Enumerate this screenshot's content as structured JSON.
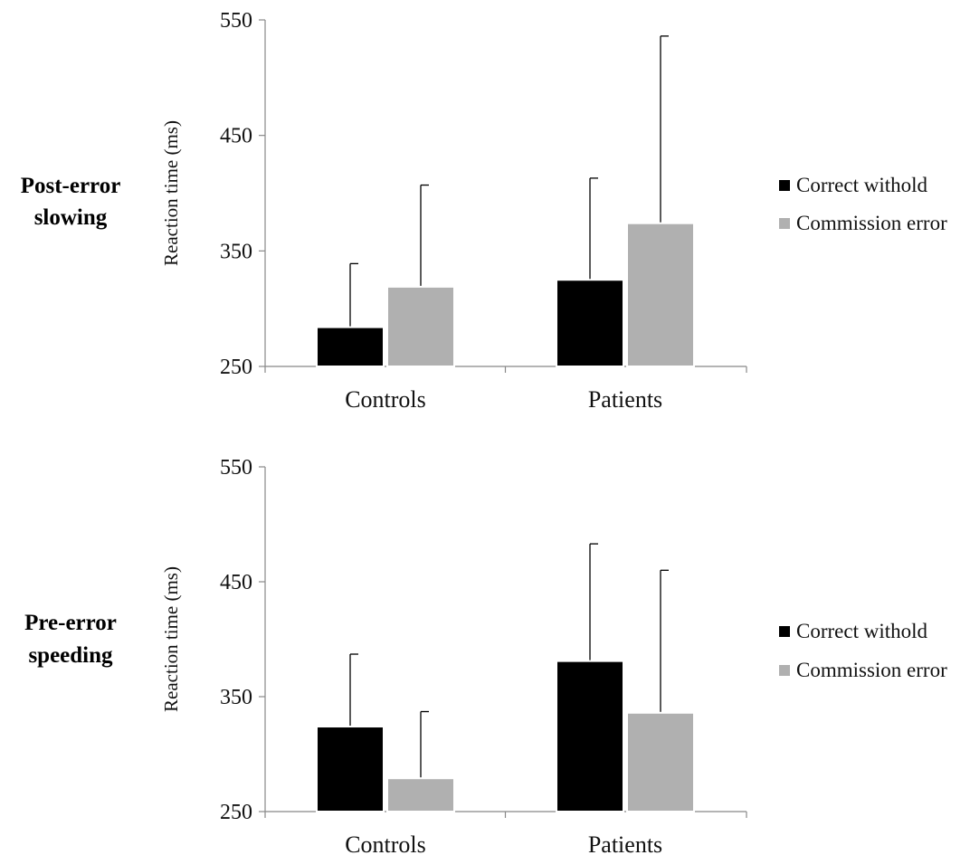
{
  "chart_data": [
    {
      "type": "bar",
      "side_label": [
        "Post-error",
        "slowing"
      ],
      "title": "",
      "xlabel": "",
      "ylabel": "Reaction time (ms)",
      "ylim": [
        250,
        550
      ],
      "yticks": [
        250,
        350,
        450,
        550
      ],
      "categories": [
        "Controls",
        "Patients"
      ],
      "series": [
        {
          "name": "Correct withold",
          "color": "#000000",
          "values": [
            284,
            325
          ],
          "error": [
            55,
            88
          ]
        },
        {
          "name": "Commission error",
          "color": "#b0b0b0",
          "values": [
            319,
            374
          ],
          "error": [
            88,
            162
          ]
        }
      ],
      "legend": {
        "position": "right",
        "entries": [
          "Correct withold",
          "Commission error"
        ]
      }
    },
    {
      "type": "bar",
      "side_label": [
        "Pre-error",
        "speeding"
      ],
      "title": "",
      "xlabel": "",
      "ylabel": "Reaction time (ms)",
      "ylim": [
        250,
        550
      ],
      "yticks": [
        250,
        350,
        450,
        550
      ],
      "categories": [
        "Controls",
        "Patients"
      ],
      "series": [
        {
          "name": "Correct withold",
          "color": "#000000",
          "values": [
            324,
            381
          ],
          "error": [
            63,
            102
          ]
        },
        {
          "name": "Commission error",
          "color": "#b0b0b0",
          "values": [
            279,
            336
          ],
          "error": [
            58,
            124
          ]
        }
      ],
      "legend": {
        "position": "right",
        "entries": [
          "Correct withold",
          "Commission error"
        ]
      }
    }
  ]
}
